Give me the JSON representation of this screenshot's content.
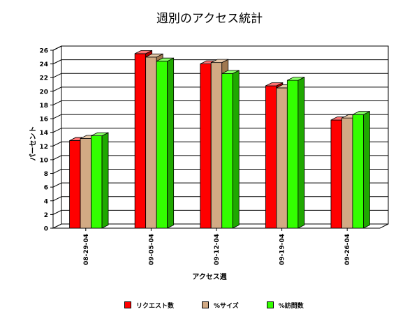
{
  "chart_data": {
    "type": "bar",
    "title": "週別のアクセス統計",
    "xlabel": "アクセス週",
    "ylabel": "パーセント",
    "categories": [
      "08-29-04",
      "09-05-04",
      "09-12-04",
      "09-19-04",
      "09-26-04"
    ],
    "series": [
      {
        "name": "リクエスト数",
        "values": [
          12.8,
          25.5,
          24.0,
          20.8,
          15.8
        ]
      },
      {
        "name": "%サイズ",
        "values": [
          13.1,
          25.0,
          24.2,
          20.5,
          16.1
        ]
      },
      {
        "name": "%訪問数",
        "values": [
          13.5,
          24.4,
          22.6,
          21.6,
          16.6
        ]
      }
    ],
    "ylim": [
      0,
      26
    ],
    "yticks": [
      0,
      2,
      4,
      6,
      8,
      10,
      12,
      14,
      16,
      18,
      20,
      22,
      24,
      26
    ],
    "grid": true,
    "legend": "bottom",
    "colors": {
      "series": [
        "#ff0000",
        "#d2aa84",
        "#33ff00"
      ],
      "series_dark": [
        "#b00000",
        "#a07850",
        "#1fa800"
      ],
      "series_light": [
        "#ff7070",
        "#e6c8a8",
        "#88ff66"
      ]
    }
  }
}
